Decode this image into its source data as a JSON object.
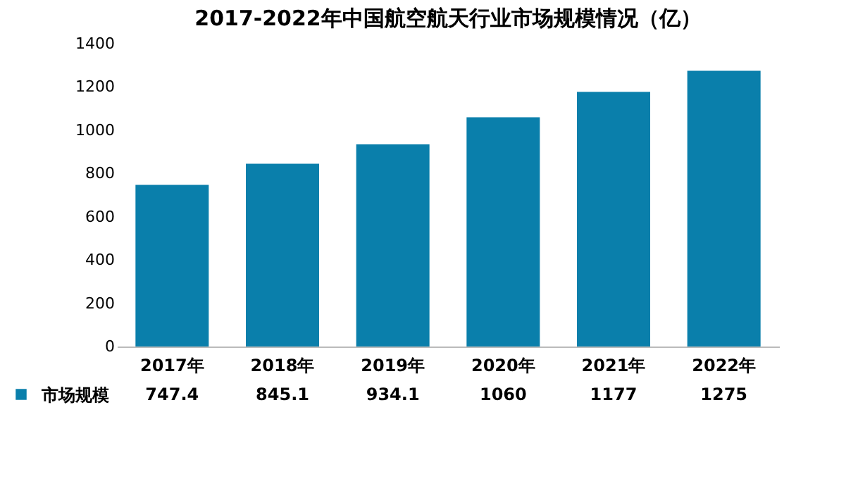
{
  "chart_data": {
    "type": "bar",
    "title": "2017-2022年中国航空航天行业市场规模情况（亿）",
    "categories": [
      "2017年",
      "2018年",
      "2019年",
      "2020年",
      "2021年",
      "2022年"
    ],
    "series": [
      {
        "name": "市场规模",
        "color": "#0a7fab",
        "values": [
          747.4,
          845.1,
          934.1,
          1060,
          1177,
          1275
        ]
      }
    ],
    "ylim": [
      0,
      1400
    ],
    "yticks": [
      0,
      200,
      400,
      600,
      800,
      1000,
      1200,
      1400
    ],
    "grid": false,
    "data_labels": true,
    "legend": "bottom left"
  }
}
